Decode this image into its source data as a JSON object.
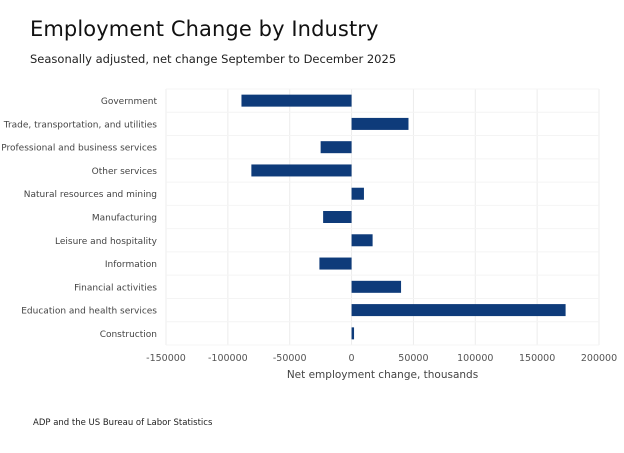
{
  "title": "Employment Change by Industry",
  "subtitle": "Seasonally adjusted, net change September to December 2025",
  "source": "ADP and the US Bureau of Labor Statistics",
  "chart_data": {
    "type": "bar",
    "orientation": "horizontal",
    "categories": [
      "Government",
      "Trade, transportation, and utilities",
      "Professional and business services",
      "Other services",
      "Natural resources and mining",
      "Manufacturing",
      "Leisure and hospitality",
      "Information",
      "Financial activities",
      "Education and health services",
      "Construction"
    ],
    "values": [
      -89000,
      46000,
      -25000,
      -81000,
      10000,
      -23000,
      17000,
      -26000,
      40000,
      173000,
      2000
    ],
    "xlabel": "Net employment change, thousands",
    "ylabel": "",
    "xlim": [
      -150000,
      200000
    ],
    "xticks": [
      -150000,
      -100000,
      -50000,
      0,
      50000,
      100000,
      150000,
      200000
    ],
    "xtick_labels": [
      "-150000",
      "-100000",
      "-50000",
      "0",
      "50000",
      "100000",
      "150000",
      "200000"
    ],
    "bar_color": "#0e3b7a",
    "grid": true
  }
}
